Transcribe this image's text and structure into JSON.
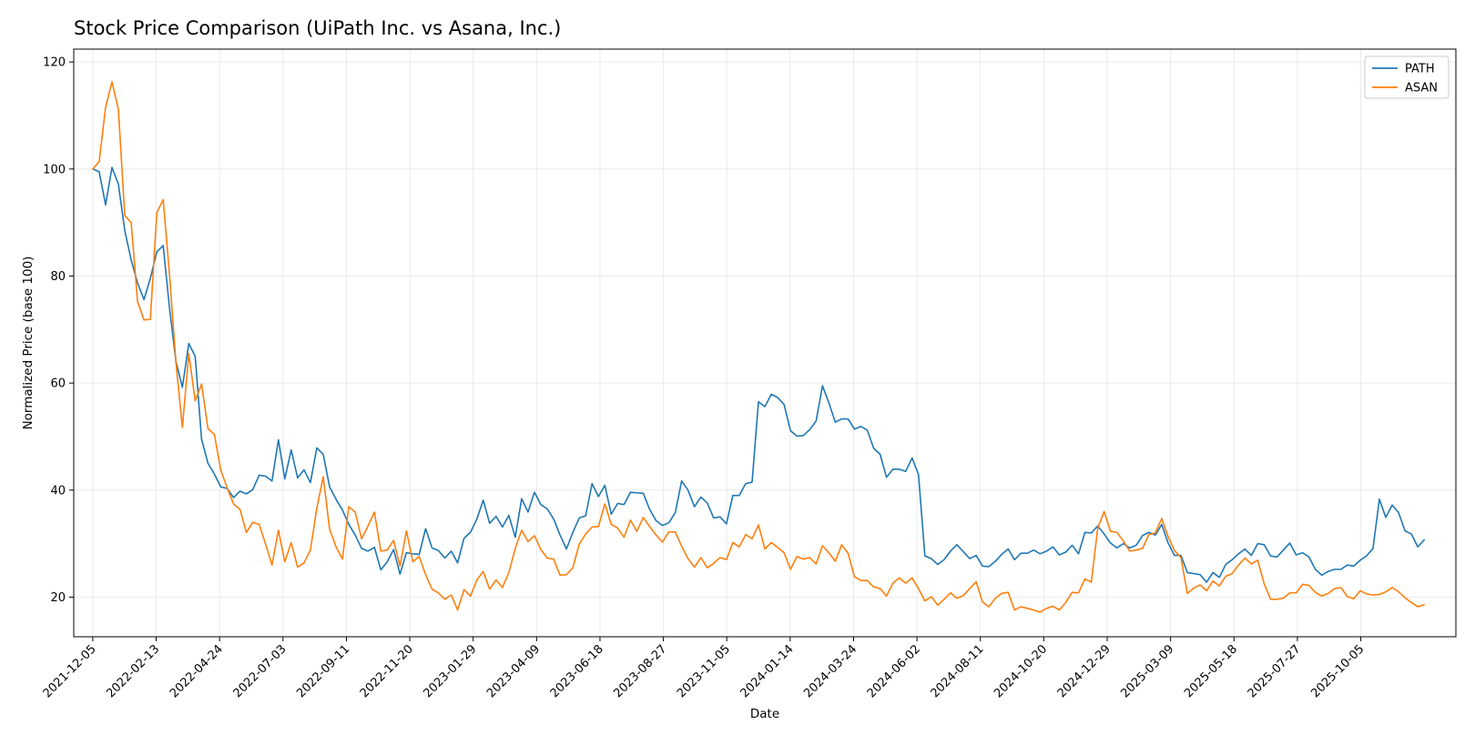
{
  "chart_data": {
    "type": "line",
    "title": "Stock Price Comparison (UiPath Inc. vs Asana, Inc.)",
    "xlabel": "Date",
    "ylabel": "Normalized Price (base 100)",
    "x_start": "2021-12-05",
    "x_end": "2025-12-14",
    "xlim": [
      "2021-11-14",
      "2026-01-18"
    ],
    "ylim": [
      12.6,
      122.4
    ],
    "yticks": [
      20,
      40,
      60,
      80,
      100,
      120
    ],
    "xticks": [
      "2021-12-05",
      "2022-02-13",
      "2022-04-24",
      "2022-07-03",
      "2022-09-11",
      "2022-11-20",
      "2023-01-29",
      "2023-04-09",
      "2023-06-18",
      "2023-08-27",
      "2023-11-05",
      "2024-01-14",
      "2024-03-24",
      "2024-06-02",
      "2024-08-11",
      "2024-10-20",
      "2024-12-29",
      "2025-03-09",
      "2025-05-18",
      "2025-07-27",
      "2025-10-05"
    ],
    "grid": true,
    "legend_position": "top-right",
    "series": [
      {
        "name": "PATH",
        "color": "#1f77b4",
        "values": [
          100,
          99.5,
          93.3,
          100.3,
          97.2,
          88.5,
          83,
          78.7,
          75.6,
          79.6,
          84.5,
          85.7,
          73.9,
          64,
          59.2,
          67.4,
          65,
          49.5,
          45,
          43,
          40.6,
          40.3,
          38.6,
          39.8,
          39.3,
          40.1,
          42.8,
          42.6,
          41.7,
          49.4,
          42.1,
          47.5,
          42.3,
          43.8,
          41.4,
          47.9,
          46.7,
          40.6,
          38.3,
          36.3,
          33.6,
          31.6,
          29.1,
          28.6,
          29.3,
          25.1,
          26.6,
          28.9,
          24.3,
          28.3,
          28.1,
          28,
          32.8,
          29.2,
          28.7,
          27.3,
          28.6,
          26.4,
          31,
          32.1,
          34.6,
          38.1,
          33.8,
          35.1,
          33.1,
          35.3,
          31.2,
          38.4,
          35.9,
          39.6,
          37.3,
          36.5,
          34.6,
          31.6,
          29,
          32.1,
          34.8,
          35.2,
          41.2,
          38.8,
          40.9,
          35.5,
          37.5,
          37.3,
          39.6,
          39.5,
          39.4,
          36.4,
          34.3,
          33.4,
          33.9,
          35.8,
          41.7,
          40,
          36.9,
          38.7,
          37.6,
          34.8,
          35,
          33.7,
          39,
          39,
          41.2,
          41.5,
          56.5,
          55.6,
          57.9,
          57.3,
          56,
          51.1,
          50.1,
          50.2,
          51.3,
          52.9,
          59.5,
          56.3,
          52.7,
          53.3,
          53.3,
          51.4,
          51.9,
          51.2,
          47.8,
          46.7,
          42.4,
          43.9,
          43.9,
          43.5,
          46,
          42.9,
          27.7,
          27.2,
          26.1,
          27,
          28.6,
          29.8,
          28.5,
          27.2,
          27.8,
          25.8,
          25.7,
          26.7,
          28,
          29,
          27,
          28.2,
          28.2,
          28.8,
          28.1,
          28.6,
          29.4,
          27.9,
          28.4,
          29.7,
          28.1,
          32.1,
          32,
          33.3,
          31.8,
          30.1,
          29.2,
          30,
          29.2,
          29.7,
          31.5,
          32.1,
          31.6,
          33.6,
          30.1,
          27.8,
          27.8,
          24.6,
          24.4,
          24.2,
          22.8,
          24.6,
          23.7,
          26.1,
          27,
          28.1,
          29,
          27.8,
          30,
          29.8,
          27.7,
          27.5,
          28.8,
          30.1,
          27.9,
          28.3,
          27.5,
          25.2,
          24.1,
          24.8,
          25.2,
          25.2,
          26,
          25.8,
          26.9,
          27.7,
          29.1,
          38.3,
          34.9,
          37.2,
          35.8,
          32.4,
          31.8,
          29.4,
          30.7
        ]
      },
      {
        "name": "ASAN",
        "color": "#ff7f0e",
        "values": [
          100,
          101.4,
          111.5,
          116.3,
          111.2,
          91.3,
          90,
          75.2,
          71.8,
          71.9,
          91.8,
          94.3,
          80.1,
          63.8,
          51.7,
          65.5,
          56.7,
          59.8,
          51.5,
          50.4,
          43.7,
          40.4,
          37.4,
          36.4,
          32.1,
          34,
          33.6,
          29.9,
          26,
          32.5,
          26.6,
          30.2,
          25.6,
          26.4,
          28.8,
          36.6,
          42.5,
          32.7,
          29.4,
          27.1,
          36.9,
          35.9,
          30.9,
          33.3,
          35.9,
          28.6,
          28.8,
          30.6,
          25.8,
          32.4,
          26.6,
          27.6,
          24.2,
          21.5,
          20.8,
          19.6,
          20.4,
          17.6,
          21.4,
          20.2,
          23.2,
          24.8,
          21.5,
          23.2,
          21.8,
          24.6,
          29.1,
          32.5,
          30.4,
          31.5,
          28.9,
          27.3,
          27.1,
          24.1,
          24.2,
          25.5,
          29.9,
          31.8,
          33.1,
          33.2,
          37.4,
          33.6,
          32.9,
          31.2,
          34.4,
          32.3,
          34.9,
          33.2,
          31.6,
          30.3,
          32.2,
          32.2,
          29.5,
          27.2,
          25.6,
          27.4,
          25.5,
          26.3,
          27.4,
          27,
          30.2,
          29.4,
          31.7,
          30.9,
          33.5,
          29,
          30.2,
          29.3,
          28.3,
          25.2,
          27.6,
          27.1,
          27.4,
          26.2,
          29.6,
          28.3,
          26.7,
          29.8,
          28.2,
          23.8,
          23.1,
          23.1,
          21.9,
          21.6,
          20.2,
          22.6,
          23.6,
          22.6,
          23.6,
          21.6,
          19.3,
          20.1,
          18.5,
          19.6,
          20.8,
          19.8,
          20.3,
          21.6,
          22.9,
          19.1,
          18.2,
          19.8,
          20.7,
          20.9,
          17.6,
          18.2,
          17.9,
          17.6,
          17.2,
          17.9,
          18.3,
          17.6,
          19,
          20.9,
          20.8,
          23.4,
          22.8,
          32.9,
          36,
          32.3,
          32.1,
          30.5,
          28.6,
          28.8,
          29.1,
          31.7,
          32,
          34.7,
          31.3,
          28.7,
          27.4,
          20.7,
          21.7,
          22.3,
          21.2,
          23,
          22.1,
          23.9,
          24.4,
          26,
          27.3,
          26.2,
          26.9,
          22.5,
          19.6,
          19.6,
          19.8,
          20.8,
          20.8,
          22.4,
          22.2,
          20.9,
          20.2,
          20.7,
          21.6,
          21.8,
          20.1,
          19.7,
          21.2,
          20.6,
          20.4,
          20.5,
          21,
          21.8,
          21,
          19.9,
          19,
          18.2,
          18.6
        ]
      }
    ]
  }
}
